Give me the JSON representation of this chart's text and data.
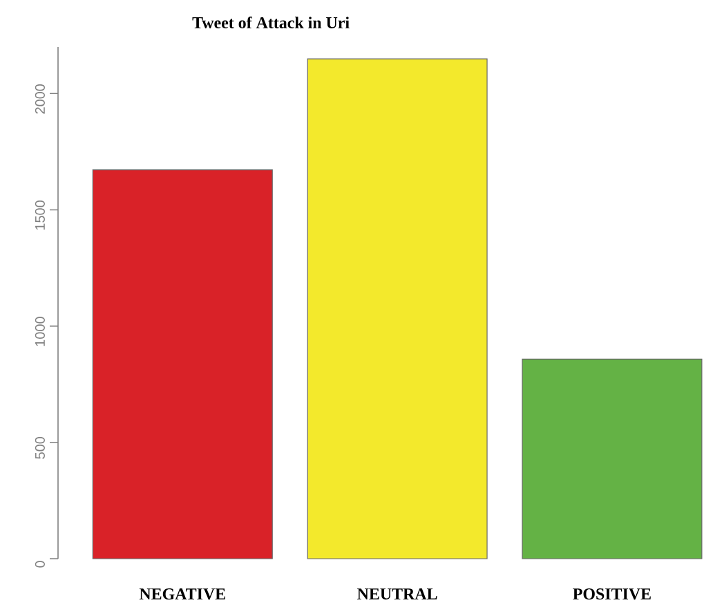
{
  "chart_data": {
    "type": "bar",
    "title": "Tweet of Attack in Uri",
    "categories": [
      "NEGATIVE",
      "NEUTRAL",
      "POSITIVE"
    ],
    "values": [
      1672,
      2149,
      858
    ],
    "colors": [
      "#d92228",
      "#f3e92c",
      "#64b245"
    ],
    "ylim": [
      0,
      2200
    ],
    "yticks": [
      0,
      500,
      1000,
      1500,
      2000
    ]
  }
}
